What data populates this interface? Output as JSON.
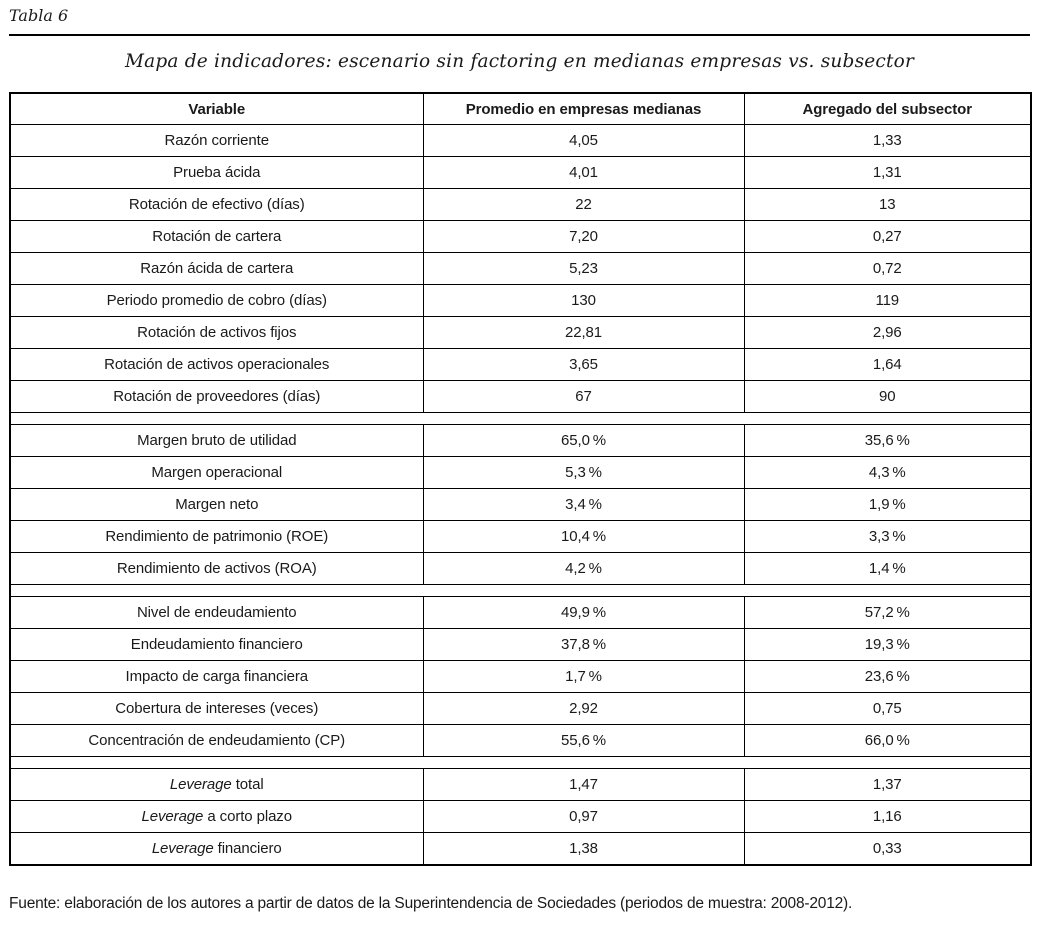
{
  "page": {
    "label": "Tabla 6",
    "title": "Mapa de indicadores: escenario sin factoring en medianas empresas vs. subsector",
    "source_note": "Fuente: elaboración de los autores a partir de datos de la Superintendencia de Sociedades (periodos de muestra: 2008-2012)."
  },
  "colors": {
    "text": "#1a1a1a",
    "border": "#000000",
    "background": "#ffffff"
  },
  "table": {
    "columns": [
      "Variable",
      "Promedio en empresas medianas",
      "Agregado del subsector"
    ],
    "groups": [
      [
        {
          "variable": "Razón corriente",
          "medianas": "4,05",
          "subsector": "1,33"
        },
        {
          "variable": "Prueba ácida",
          "medianas": "4,01",
          "subsector": "1,31"
        },
        {
          "variable": "Rotación de efectivo (días)",
          "medianas": "22",
          "subsector": "13"
        },
        {
          "variable": "Rotación de cartera",
          "medianas": "7,20",
          "subsector": "0,27"
        },
        {
          "variable": "Razón ácida de cartera",
          "medianas": "5,23",
          "subsector": "0,72"
        },
        {
          "variable": "Periodo promedio de cobro (días)",
          "medianas": "130",
          "subsector": "119"
        },
        {
          "variable": "Rotación de activos fijos",
          "medianas": "22,81",
          "subsector": "2,96"
        },
        {
          "variable": "Rotación de activos operacionales",
          "medianas": "3,65",
          "subsector": "1,64"
        },
        {
          "variable": "Rotación de proveedores (días)",
          "medianas": "67",
          "subsector": "90"
        }
      ],
      [
        {
          "variable": "Margen bruto de utilidad",
          "medianas": "65,0 %",
          "subsector": "35,6 %"
        },
        {
          "variable": "Margen operacional",
          "medianas": "5,3 %",
          "subsector": "4,3 %"
        },
        {
          "variable": "Margen neto",
          "medianas": "3,4 %",
          "subsector": "1,9 %"
        },
        {
          "variable": "Rendimiento de patrimonio (ROE)",
          "medianas": "10,4 %",
          "subsector": "3,3 %"
        },
        {
          "variable": "Rendimiento de activos (ROA)",
          "medianas": "4,2 %",
          "subsector": "1,4 %"
        }
      ],
      [
        {
          "variable": "Nivel de endeudamiento",
          "medianas": "49,9 %",
          "subsector": "57,2 %"
        },
        {
          "variable": "Endeudamiento financiero",
          "medianas": "37,8 %",
          "subsector": "19,3 %"
        },
        {
          "variable": "Impacto de carga financiera",
          "medianas": "1,7 %",
          "subsector": "23,6 %"
        },
        {
          "variable": "Cobertura de intereses (veces)",
          "medianas": "2,92",
          "subsector": "0,75"
        },
        {
          "variable": "Concentración de endeudamiento (CP)",
          "medianas": "55,6 %",
          "subsector": "66,0 %"
        }
      ],
      [
        {
          "variable": "Leverage total",
          "italic_prefix": "Leverage",
          "medianas": "1,47",
          "subsector": "1,37"
        },
        {
          "variable": "Leverage a corto plazo",
          "italic_prefix": "Leverage",
          "medianas": "0,97",
          "subsector": "1,16"
        },
        {
          "variable": "Leverage financiero",
          "italic_prefix": "Leverage",
          "medianas": "1,38",
          "subsector": "0,33"
        }
      ]
    ]
  }
}
